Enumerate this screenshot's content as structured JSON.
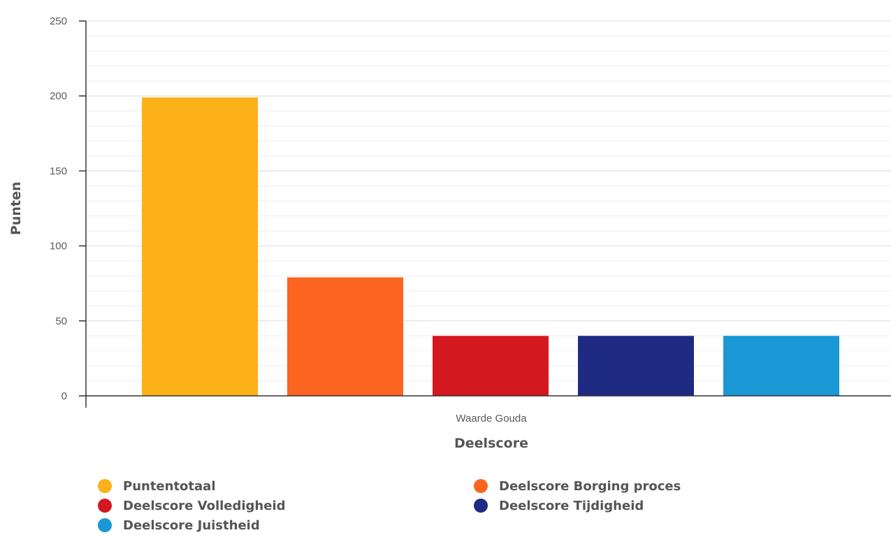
{
  "chart_data": {
    "type": "bar",
    "categories": [
      "Waarde Gouda"
    ],
    "xlabel": "Deelscore",
    "ylabel": "Punten",
    "ylim": [
      0,
      250
    ],
    "yticks": [
      0,
      50,
      100,
      150,
      200,
      250
    ],
    "grid": true,
    "legend_position": "bottom",
    "series": [
      {
        "name": "Puntentotaal",
        "values": [
          199
        ],
        "color": "#fbb117"
      },
      {
        "name": "Deelscore Borging proces",
        "values": [
          79
        ],
        "color": "#fc6420"
      },
      {
        "name": "Deelscore Volledigheid",
        "values": [
          40
        ],
        "color": "#d3191f"
      },
      {
        "name": "Deelscore Tijdigheid",
        "values": [
          40
        ],
        "color": "#1f2a82"
      },
      {
        "name": "Deelscore Juistheid",
        "values": [
          40
        ],
        "color": "#1a98d5"
      }
    ]
  }
}
